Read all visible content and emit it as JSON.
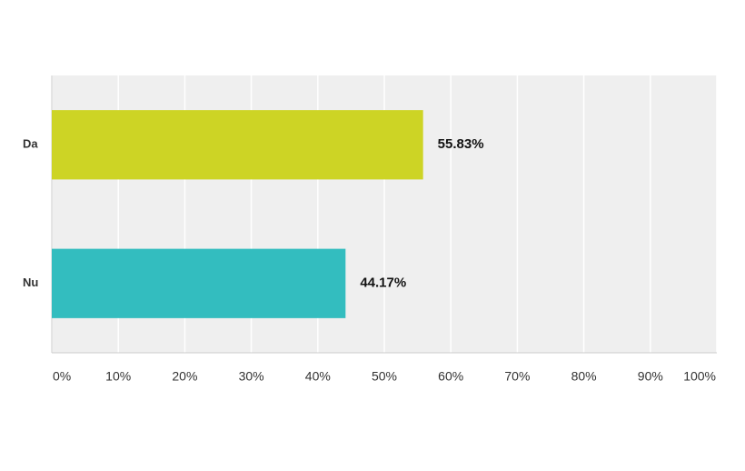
{
  "chart_data": {
    "type": "hbar",
    "categories": [
      "Da",
      "Nu"
    ],
    "values": [
      55.83,
      44.17
    ],
    "value_labels": [
      "55.83%",
      "44.17%"
    ],
    "colors": [
      "#cdd425",
      "#33bdbf"
    ],
    "xlim": [
      0,
      100
    ],
    "xticks": [
      {
        "value": 0,
        "label": "0%"
      },
      {
        "value": 10,
        "label": "10%"
      },
      {
        "value": 20,
        "label": "20%"
      },
      {
        "value": 30,
        "label": "30%"
      },
      {
        "value": 40,
        "label": "40%"
      },
      {
        "value": 50,
        "label": "50%"
      },
      {
        "value": 60,
        "label": "60%"
      },
      {
        "value": 70,
        "label": "70%"
      },
      {
        "value": 80,
        "label": "80%"
      },
      {
        "value": 90,
        "label": "90%"
      },
      {
        "value": 100,
        "label": "100%"
      }
    ],
    "grid": true
  }
}
